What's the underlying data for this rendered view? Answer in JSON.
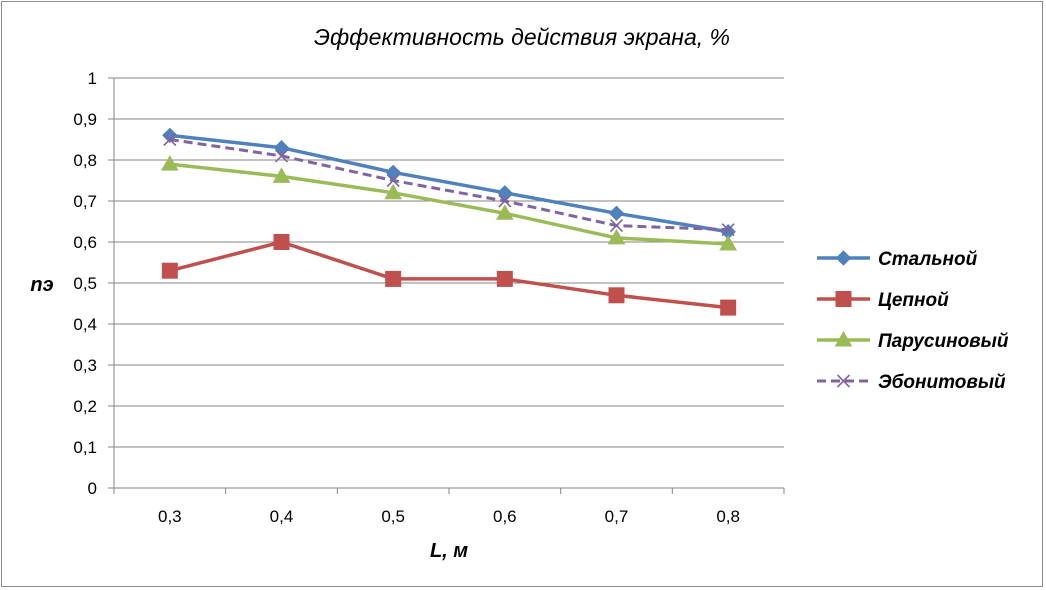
{
  "chart_data": {
    "type": "line",
    "title": "Эффективность действия экрана, %",
    "xlabel": "L, м",
    "ylabel": "nэ",
    "categories": [
      "0,3",
      "0,4",
      "0,5",
      "0,6",
      "0,7",
      "0,8"
    ],
    "ylim": [
      0,
      1
    ],
    "yticks": [
      "0",
      "0,1",
      "0,2",
      "0,3",
      "0,4",
      "0,5",
      "0,6",
      "0,7",
      "0,8",
      "0,9",
      "1"
    ],
    "grid": true,
    "legend_position": "right",
    "series": [
      {
        "name": "Стальной",
        "values": [
          0.86,
          0.83,
          0.77,
          0.72,
          0.67,
          0.625
        ],
        "color": "#4F81BD",
        "marker": "diamond",
        "dash": "solid"
      },
      {
        "name": "Цепной",
        "values": [
          0.53,
          0.6,
          0.51,
          0.51,
          0.47,
          0.44
        ],
        "color": "#C0504D",
        "marker": "square",
        "dash": "solid"
      },
      {
        "name": "Парусиновый",
        "values": [
          0.79,
          0.76,
          0.72,
          0.67,
          0.61,
          0.595
        ],
        "color": "#9BBB59",
        "marker": "triangle",
        "dash": "solid"
      },
      {
        "name": "Эбонитовый",
        "values": [
          0.85,
          0.81,
          0.75,
          0.7,
          0.64,
          0.63
        ],
        "color": "#8064A2",
        "marker": "x",
        "dash": "dashed"
      }
    ]
  }
}
